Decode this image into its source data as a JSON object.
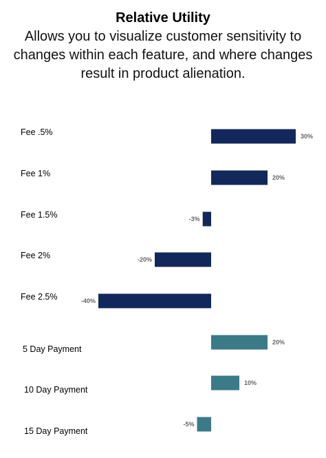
{
  "header": {
    "title": "Relative Utility",
    "subtitle": "Allows you to visualize customer sensitivity to changes within each feature, and where changes result in product alienation."
  },
  "colors": {
    "fee": "#13285a",
    "payment": "#3b7a87"
  },
  "chart_data": {
    "type": "bar",
    "orientation": "horizontal",
    "title": "Relative Utility",
    "subtitle": "Allows you to visualize customer sensitivity to changes within each feature, and where changes result in product alienation.",
    "categories": [
      "Fee .5%",
      "Fee 1%",
      "Fee 1.5%",
      "Fee 2%",
      "Fee 2.5%",
      "5 Day Payment",
      "10 Day Payment",
      "15 Day Payment"
    ],
    "values": [
      30,
      20,
      -3,
      -20,
      -40,
      20,
      10,
      -5
    ],
    "value_labels": [
      "30%",
      "20%",
      "-3%",
      "-20%",
      "-40%",
      "20%",
      "10%",
      "-5%"
    ],
    "groups": [
      "fee",
      "fee",
      "fee",
      "fee",
      "fee",
      "payment",
      "payment",
      "payment"
    ],
    "unit": "%",
    "grid": false,
    "legend": "none"
  }
}
